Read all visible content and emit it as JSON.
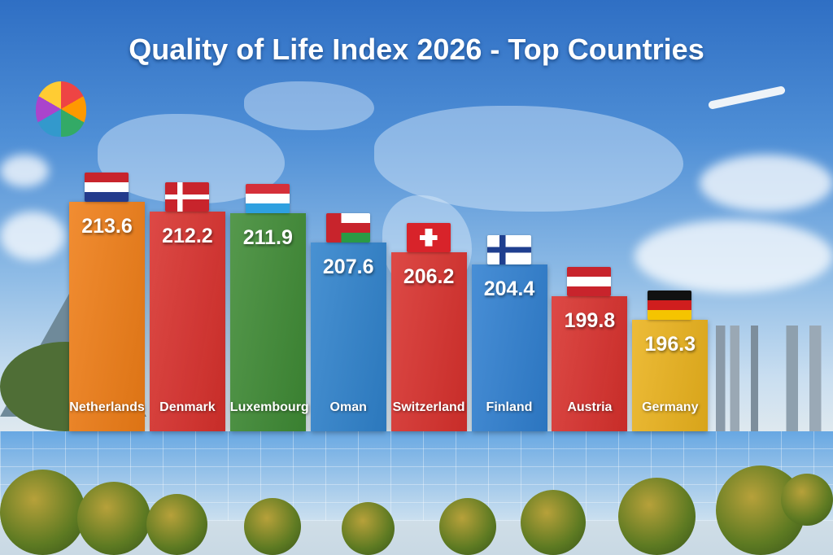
{
  "chart_data": {
    "type": "bar",
    "title": "Quality of Life Index 2026 - Top Countries",
    "categories": [
      "Netherlands",
      "Denmark",
      "Luxembourg",
      "Oman",
      "Switzerland",
      "Finland",
      "Austria",
      "Germany"
    ],
    "values": [
      213.6,
      212.2,
      211.9,
      207.6,
      206.2,
      204.4,
      199.8,
      196.3
    ],
    "value_labels": [
      "213.6",
      "212.2",
      "211.9",
      "207.6",
      "206.2",
      "204.4",
      "199.8",
      "196.3"
    ],
    "bar_colors": [
      "#ef7d16",
      "#d8302c",
      "#3e8a34",
      "#2f82cc",
      "#d8302c",
      "#2f7fd0",
      "#d8302c",
      "#eab21c"
    ],
    "flags": [
      "netherlands-flag",
      "denmark-flag",
      "luxembourg-flag",
      "oman-flag",
      "switzerland-flag",
      "finland-flag",
      "austria-flag",
      "germany-flag"
    ],
    "ylim": [
      180,
      216
    ],
    "grid": false,
    "legend": "none"
  }
}
